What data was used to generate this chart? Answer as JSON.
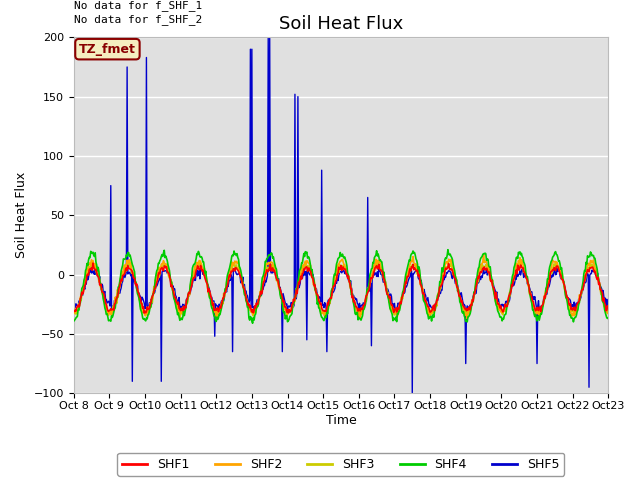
{
  "title": "Soil Heat Flux",
  "ylabel": "Soil Heat Flux",
  "xlabel": "Time",
  "ylim": [
    -100,
    200
  ],
  "yticks": [
    -100,
    -50,
    0,
    50,
    100,
    150,
    200
  ],
  "note1": "No data for f_SHF_1",
  "note2": "No data for f_SHF_2",
  "tz_label": "TZ_fmet",
  "xtick_labels": [
    "Oct 8",
    "Oct 9",
    "Oct 10",
    "Oct 11",
    "Oct 12",
    "Oct 13",
    "Oct 14",
    "Oct 15",
    "Oct 16",
    "Oct 17",
    "Oct 18",
    "Oct 19",
    "Oct 20",
    "Oct 21",
    "Oct 22",
    "Oct 23"
  ],
  "series_colors": {
    "SHF1": "#FF0000",
    "SHF2": "#FFA500",
    "SHF3": "#CCCC00",
    "SHF4": "#00CC00",
    "SHF5": "#0000CC"
  },
  "bg_color": "#E0E0E0",
  "grid_color": "#F0F0F0",
  "title_fontsize": 13,
  "axis_fontsize": 9,
  "tick_fontsize": 8,
  "legend_fontsize": 9,
  "note_fontsize": 8,
  "tz_fontsize": 9,
  "n_days": 15,
  "pts_per_day": 48
}
